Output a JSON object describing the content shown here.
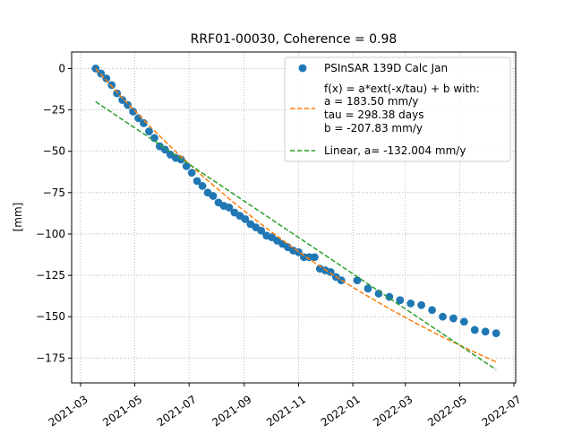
{
  "chart_data": {
    "type": "scatter",
    "title": "RRF01-00030, Coherence = 0.98",
    "xlabel": "",
    "ylabel": "[mm]",
    "x_axis_type": "date",
    "xlim": [
      "2021-02-19",
      "2022-07-03"
    ],
    "ylim": [
      -190,
      10
    ],
    "grid": true,
    "grid_style": "dotted",
    "legend_position": "top-right",
    "x_ticks": [
      "2021-03-01",
      "2021-05-01",
      "2021-07-01",
      "2021-09-01",
      "2021-11-01",
      "2022-01-01",
      "2022-03-01",
      "2022-05-01",
      "2022-07-01"
    ],
    "x_tick_labels": [
      "2021-03",
      "2021-05",
      "2021-07",
      "2021-09",
      "2021-11",
      "2022-01",
      "2022-03",
      "2022-05",
      "2022-07"
    ],
    "y_ticks": [
      0,
      -25,
      -50,
      -75,
      -100,
      -125,
      -150,
      -175
    ],
    "y_tick_labels": [
      "0",
      "−25",
      "−50",
      "−75",
      "−100",
      "−125",
      "−150",
      "−175"
    ],
    "series": [
      {
        "name": "PSInSAR 139D Calc Jan",
        "kind": "scatter",
        "color": "#1f77b4",
        "x": [
          "2021-03-18",
          "2021-03-24",
          "2021-03-30",
          "2021-04-05",
          "2021-04-11",
          "2021-04-17",
          "2021-04-23",
          "2021-04-29",
          "2021-05-05",
          "2021-05-11",
          "2021-05-17",
          "2021-05-23",
          "2021-05-29",
          "2021-06-04",
          "2021-06-10",
          "2021-06-16",
          "2021-06-22",
          "2021-06-28",
          "2021-07-04",
          "2021-07-10",
          "2021-07-16",
          "2021-07-22",
          "2021-07-28",
          "2021-08-03",
          "2021-08-09",
          "2021-08-15",
          "2021-08-21",
          "2021-08-27",
          "2021-09-02",
          "2021-09-08",
          "2021-09-14",
          "2021-09-20",
          "2021-09-26",
          "2021-10-02",
          "2021-10-08",
          "2021-10-14",
          "2021-10-20",
          "2021-10-26",
          "2021-11-01",
          "2021-11-07",
          "2021-11-13",
          "2021-11-19",
          "2021-11-25",
          "2021-12-01",
          "2021-12-07",
          "2021-12-13",
          "2021-12-19",
          "2022-01-06",
          "2022-01-18",
          "2022-01-30",
          "2022-02-11",
          "2022-02-23",
          "2022-03-07",
          "2022-03-19",
          "2022-03-31",
          "2022-04-12",
          "2022-04-24",
          "2022-05-06",
          "2022-05-18",
          "2022-05-30",
          "2022-06-11"
        ],
        "y": [
          0,
          -3,
          -6,
          -10,
          -15,
          -19,
          -22,
          -26,
          -30,
          -33,
          -38,
          -42,
          -47,
          -49,
          -52,
          -54,
          -55,
          -59,
          -63,
          -68,
          -71,
          -75,
          -77,
          -81,
          -83,
          -84,
          -87,
          -89,
          -91,
          -94,
          -96,
          -98,
          -101,
          -102,
          -104,
          -106,
          -108,
          -110,
          -111,
          -114,
          -114,
          -114,
          -121,
          -122,
          -123,
          -126,
          -128,
          -128,
          -133,
          -136,
          -138,
          -140,
          -142,
          -143,
          -146,
          -150,
          -151,
          -153,
          -158,
          -159,
          -160
        ]
      },
      {
        "name": "f(x) = a*ext(-x/tau) + b with:\na  = 183.50 mm/y\ntau = 298.38 days\nb = -207.83 mm/y",
        "kind": "line",
        "line_style": "dashed",
        "color": "#ff7f0e",
        "params": {
          "a": 183.5,
          "tau_days": 298.38,
          "b": -207.83
        },
        "x": [
          "2021-03-18",
          "2021-04-17",
          "2021-05-17",
          "2021-06-16",
          "2021-07-16",
          "2021-08-15",
          "2021-09-14",
          "2021-10-14",
          "2021-11-13",
          "2021-12-13",
          "2022-01-12",
          "2022-02-11",
          "2022-03-13",
          "2022-04-12",
          "2022-05-12",
          "2022-06-11"
        ],
        "y": [
          0,
          -17.8,
          -34.5,
          -50.2,
          -64.9,
          -78.7,
          -91.6,
          -103.8,
          -115.2,
          -125.8,
          -135.8,
          -145.2,
          -154.0,
          -162.3,
          -170.0,
          -177.3
        ]
      },
      {
        "name": "Linear, a= -132.004 mm/y",
        "kind": "line",
        "line_style": "dashed",
        "color": "#2ca02c",
        "x": [
          "2021-03-18",
          "2022-06-11"
        ],
        "y": [
          -20,
          -182
        ]
      }
    ]
  }
}
